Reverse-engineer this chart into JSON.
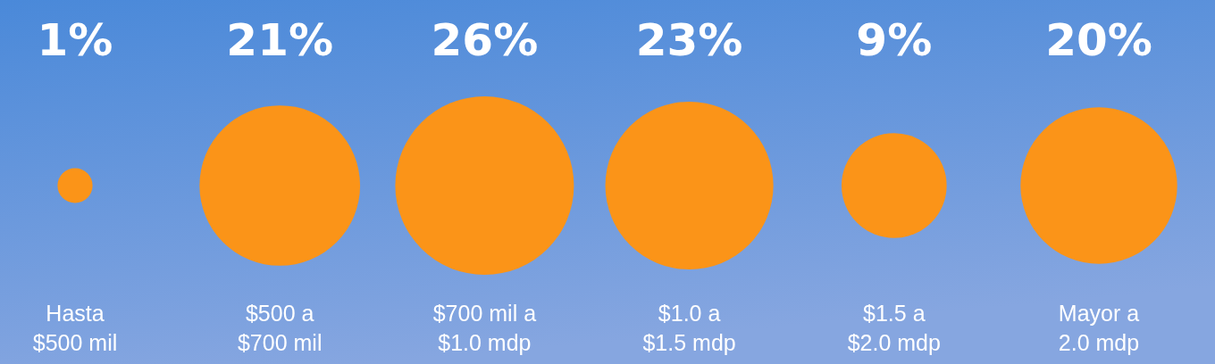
{
  "chart_data": {
    "type": "other",
    "categories": [
      "Hasta $500 mil",
      "$500 a $700 mil",
      "$700 mil a $1.0 mdp",
      "$1.0 a $1.5 mdp",
      "$1.5 a $2.0 mdp",
      "Mayor a 2.0 mdp"
    ],
    "values": [
      1,
      21,
      26,
      23,
      9,
      20
    ],
    "value_labels": [
      "1%",
      "21%",
      "26%",
      "23%",
      "9%",
      "20%"
    ],
    "color": "#fb9418"
  }
}
